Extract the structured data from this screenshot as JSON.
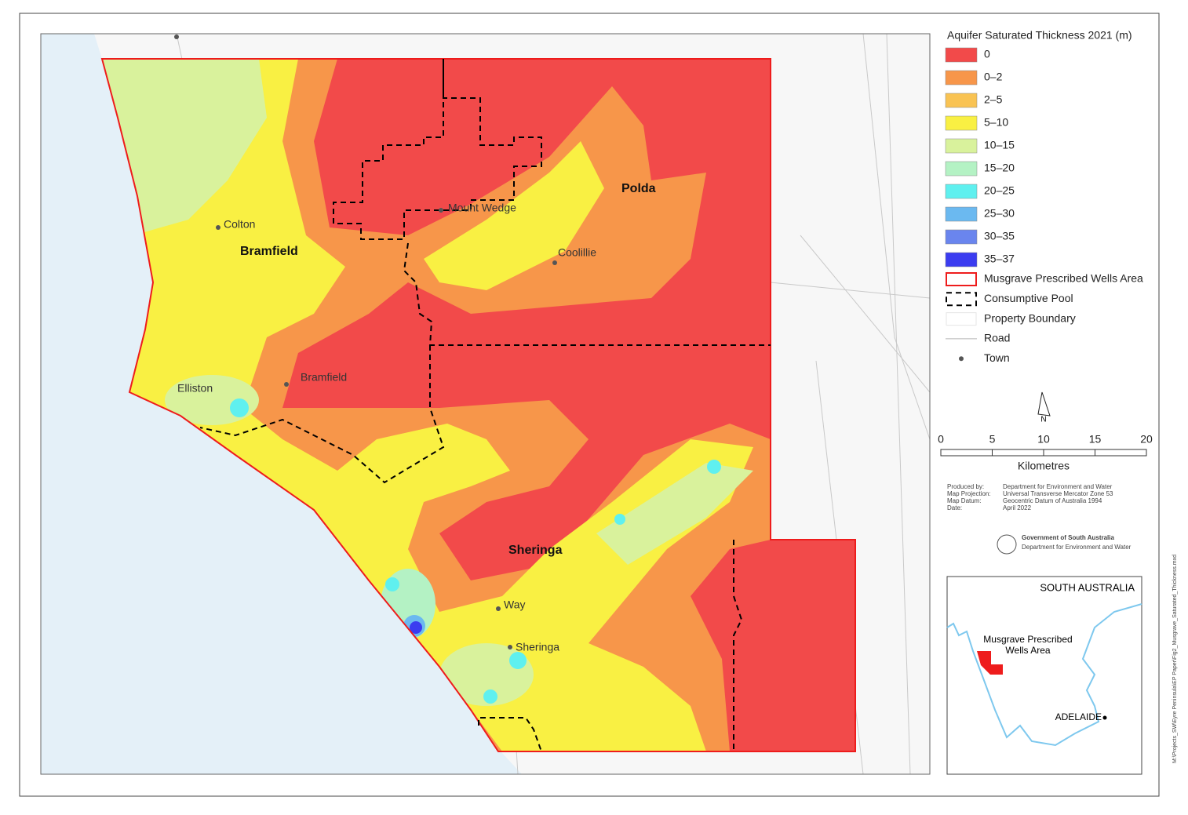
{
  "map": {
    "legend": {
      "title": "Aquifer Saturated Thickness 2021 (m)",
      "items": [
        {
          "label": "0",
          "color": "#f24a4a",
          "kind": "fill"
        },
        {
          "label": "0–2",
          "color": "#f7964a",
          "kind": "fill"
        },
        {
          "label": "2–5",
          "color": "#f9c353",
          "kind": "fill"
        },
        {
          "label": "5–10",
          "color": "#f9f043",
          "kind": "fill"
        },
        {
          "label": "10–15",
          "color": "#d9f29c",
          "kind": "fill"
        },
        {
          "label": "15–20",
          "color": "#b4f2c4",
          "kind": "fill"
        },
        {
          "label": "20–25",
          "color": "#5ff0ef",
          "kind": "fill"
        },
        {
          "label": "25–30",
          "color": "#6bb9f0",
          "kind": "fill"
        },
        {
          "label": "30–35",
          "color": "#6a85ee",
          "kind": "fill"
        },
        {
          "label": "35–37",
          "color": "#3b3cf0",
          "kind": "fill"
        },
        {
          "label": "Musgrave Prescribed Wells Area",
          "color": "#ee1c1c",
          "kind": "outline"
        },
        {
          "label": "Consumptive Pool",
          "color": "#000000",
          "kind": "dashed"
        },
        {
          "label": "Property Boundary",
          "color": "#e6e6e6",
          "kind": "none"
        },
        {
          "label": "Road",
          "color": "#b5b5b5",
          "kind": "line"
        },
        {
          "label": "Town",
          "color": "#555555",
          "kind": "point"
        }
      ]
    },
    "places": {
      "colton": "Colton",
      "bramfield_region": "Bramfield",
      "polda": "Polda",
      "mount_wedge": "Mount Wedge",
      "coolillie": "Coolillie",
      "bramfield_town": "Bramfield",
      "elliston": "Elliston",
      "sheringa_region": "Sheringa",
      "way": "Way",
      "sheringa_town": "Sheringa"
    },
    "north": "N",
    "scale": {
      "ticks": [
        0,
        5,
        10,
        15,
        20
      ],
      "unit": "Kilometres"
    },
    "credits": [
      [
        "Produced by:",
        "Department for Environment and Water"
      ],
      [
        "Map Projection:",
        "Universal Transverse Mercator Zone 53"
      ],
      [
        "Map Datum:",
        "Geocentric Datum of Australia 1994"
      ],
      [
        "Date:",
        "April 2022"
      ]
    ],
    "logo": [
      "Government of South Australia",
      "Department for Environment and Water"
    ],
    "inset": {
      "title": "SOUTH AUSTRALIA",
      "area": [
        "Musgrave Prescribed",
        "Wells Area"
      ],
      "city": "ADELAIDE"
    },
    "file_path": "M:\\Projects_SW\\Eyre Peninsula\\EP Paper\\Fig2_Musgrave_Saturated_Thickness.mxd"
  }
}
